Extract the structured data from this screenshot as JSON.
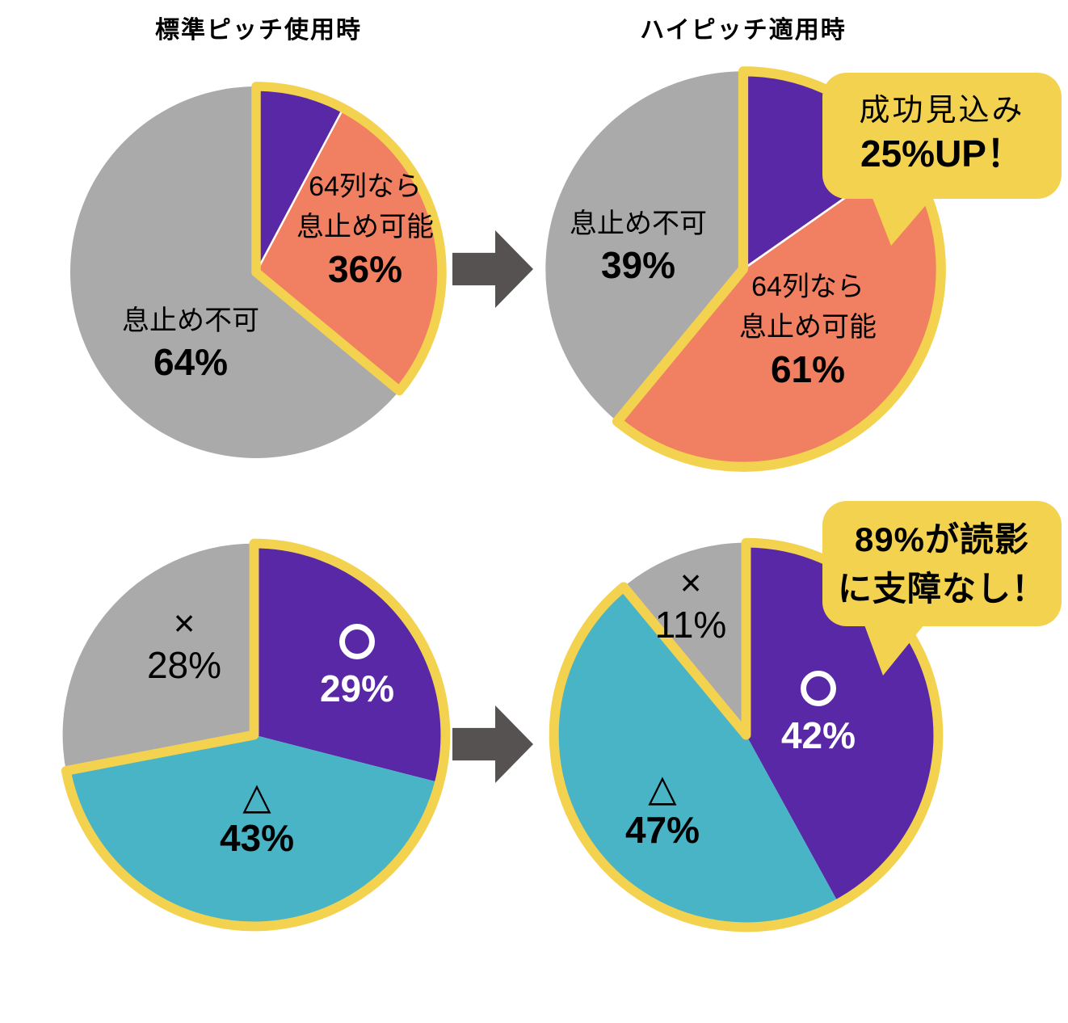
{
  "colors": {
    "purple": "#5928A6",
    "salmon": "#F08061",
    "teal": "#49B4C6",
    "gray": "#ABAAAA",
    "yellow": "#F3D24F",
    "arrow": "#555251",
    "text_black": "#000000",
    "text_white": "#ffffff",
    "background": "#ffffff"
  },
  "titles": {
    "left": "標準ピッチ使用時",
    "right": "ハイピッチ適用時"
  },
  "bubbles": {
    "top": {
      "line1": "成功見込み",
      "line2": "25%UP！"
    },
    "bottom": {
      "line1": "89%が読影",
      "line2": "に支障なし！"
    }
  },
  "arrows": {
    "direction": "right"
  },
  "chart_data": [
    {
      "id": "standard-pitch",
      "type": "pie",
      "title": "標準ピッチ使用時",
      "outline": {
        "start_deg": 0,
        "end_deg": 129.6
      },
      "slices": [
        {
          "color": "purple",
          "start_deg": 0,
          "end_deg": 28,
          "value": null,
          "label_lines": [],
          "pct": "",
          "divider_after": true
        },
        {
          "color": "salmon",
          "start_deg": 28,
          "end_deg": 129.6,
          "value": 36,
          "label_lines": [
            "64列なら",
            "息止め可能"
          ],
          "pct": "36%"
        },
        {
          "color": "gray",
          "start_deg": 129.6,
          "end_deg": 360,
          "value": 64,
          "label_lines": [
            "息止め不可"
          ],
          "pct": "64%"
        }
      ]
    },
    {
      "id": "high-pitch",
      "type": "pie",
      "title": "ハイピッチ適用時",
      "outline": {
        "start_deg": 0,
        "end_deg": 219.6
      },
      "slices": [
        {
          "color": "purple",
          "start_deg": 0,
          "end_deg": 55,
          "value": null,
          "label_lines": [],
          "pct": "",
          "divider_after": true
        },
        {
          "color": "salmon",
          "start_deg": 55,
          "end_deg": 219.6,
          "value": 61,
          "label_lines": [
            "64列なら",
            "息止め可能"
          ],
          "pct": "61%"
        },
        {
          "color": "gray",
          "start_deg": 219.6,
          "end_deg": 360,
          "value": 39,
          "label_lines": [
            "息止め不可"
          ],
          "pct": "39%"
        }
      ]
    },
    {
      "id": "reading-standard",
      "type": "pie",
      "title": "",
      "outline": {
        "start_deg": 0,
        "end_deg": 259.2
      },
      "slices": [
        {
          "color": "purple",
          "start_deg": 0,
          "end_deg": 104.4,
          "value": 29,
          "symbol": "○",
          "pct": "29%"
        },
        {
          "color": "teal",
          "start_deg": 104.4,
          "end_deg": 259.2,
          "value": 43,
          "symbol": "△",
          "pct": "43%"
        },
        {
          "color": "gray",
          "start_deg": 259.2,
          "end_deg": 360,
          "value": 28,
          "symbol": "×",
          "pct": "28%"
        }
      ]
    },
    {
      "id": "reading-high",
      "type": "pie",
      "title": "",
      "outline": {
        "start_deg": 0,
        "end_deg": 320.4
      },
      "slices": [
        {
          "color": "purple",
          "start_deg": 0,
          "end_deg": 151.2,
          "value": 42,
          "symbol": "○",
          "pct": "42%"
        },
        {
          "color": "teal",
          "start_deg": 151.2,
          "end_deg": 320.4,
          "value": 47,
          "symbol": "△",
          "pct": "47%"
        },
        {
          "color": "gray",
          "start_deg": 320.4,
          "end_deg": 360,
          "value": 11,
          "symbol": "×",
          "pct": "11%"
        }
      ]
    }
  ]
}
